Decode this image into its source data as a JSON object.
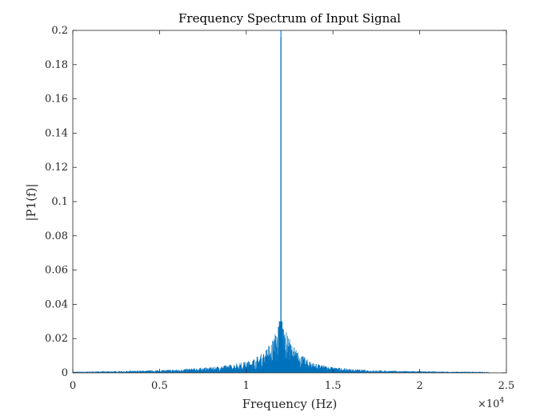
{
  "chart_data": {
    "type": "line",
    "title": "Frequency Spectrum of Input Signal",
    "xlabel": "Frequency (Hz)",
    "ylabel": "|P1(f)|",
    "xlim": [
      0,
      25000
    ],
    "ylim": [
      0,
      0.2
    ],
    "x_multiplier_label": "×10",
    "x_multiplier_exponent": "4",
    "xticks": [
      0,
      5000,
      10000,
      15000,
      20000,
      25000
    ],
    "xtick_labels": [
      "0",
      "0.5",
      "1",
      "1.5",
      "2",
      "2.5"
    ],
    "yticks": [
      0,
      0.02,
      0.04,
      0.06,
      0.08,
      0.1,
      0.12,
      0.14,
      0.16,
      0.18,
      0.2
    ],
    "ytick_labels": [
      "0",
      "0.02",
      "0.04",
      "0.06",
      "0.08",
      "0.1",
      "0.12",
      "0.14",
      "0.16",
      "0.18",
      "0.2"
    ],
    "grid": false,
    "line_color": "#0072BD",
    "series": [
      {
        "x": [
          0,
          1000,
          2000,
          3000,
          4000,
          5000,
          6000,
          7000,
          8000,
          9000,
          10000,
          10500,
          11000,
          11400,
          11700,
          11900,
          11990,
          12000,
          12010,
          12100,
          12300,
          12600,
          13000,
          13500,
          14000,
          15000,
          16000,
          17000,
          18000,
          19000,
          20000,
          21000,
          22000,
          23000,
          24000
        ],
        "values": [
          0.0005,
          0.0006,
          0.0007,
          0.0008,
          0.001,
          0.0012,
          0.0015,
          0.002,
          0.0025,
          0.0035,
          0.005,
          0.0065,
          0.009,
          0.013,
          0.018,
          0.022,
          0.2,
          0.2,
          0.2,
          0.022,
          0.018,
          0.013,
          0.009,
          0.006,
          0.004,
          0.0025,
          0.0017,
          0.0012,
          0.001,
          0.0008,
          0.0007,
          0.0006,
          0.0005,
          0.0005,
          0.0004
        ]
      }
    ]
  }
}
